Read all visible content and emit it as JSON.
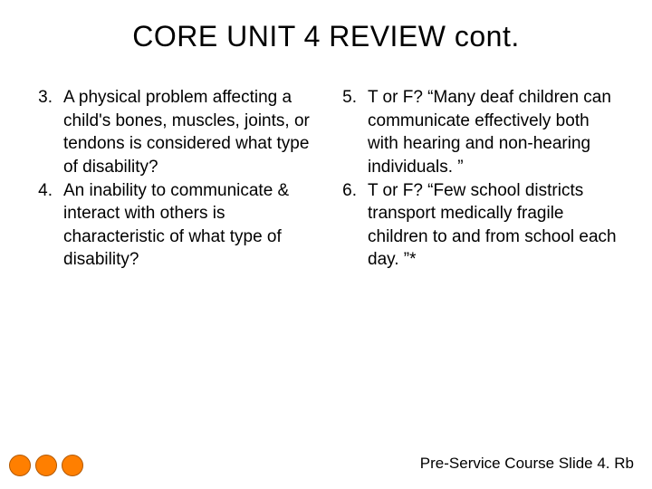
{
  "title": "CORE UNIT 4 REVIEW cont.",
  "left": {
    "items": [
      {
        "num": "3.",
        "text": "A physical problem affecting a child's bones, muscles, joints, or tendons is considered what type of disability?"
      },
      {
        "num": "4.",
        "text": "An inability to communicate & interact with others is characteristic of what type of disability?"
      }
    ]
  },
  "right": {
    "items": [
      {
        "num": "5.",
        "text": "T or F?  “Many deaf children can communicate effectively both with hearing and non-hearing individuals. ”"
      },
      {
        "num": "6.",
        "text": "T or F?  “Few school districts transport medically fragile children to and from school each day. ”*"
      }
    ]
  },
  "footer": "Pre-Service Course Slide 4. Rb",
  "dot_color": "#ff7f00",
  "dot_border": "#b35900",
  "background_color": "#ffffff",
  "text_color": "#000000",
  "title_fontsize": 32,
  "body_fontsize": 19
}
